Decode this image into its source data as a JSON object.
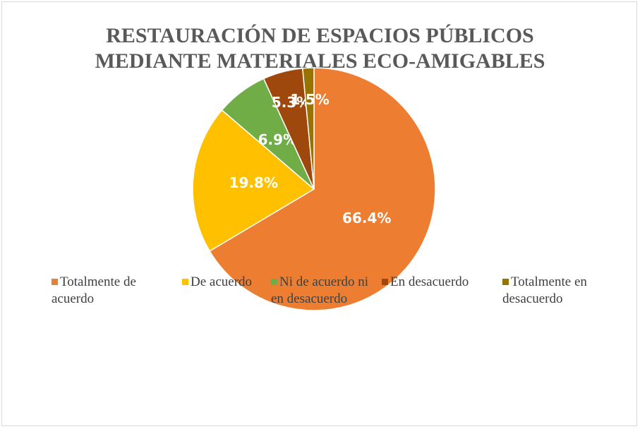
{
  "chart_data": {
    "type": "pie",
    "title": "RESTAURACIÓN DE ESPACIOS PÚBLICOS MEDIANTE  MATERIALES ECO-AMIGABLES",
    "categories": [
      "Totalmente de acuerdo",
      "De acuerdo",
      "Ni de acuerdo ni en desacuerdo",
      "En desacuerdo",
      "Totalmente en desacuerdo"
    ],
    "values": [
      66.4,
      19.8,
      6.9,
      5.3,
      1.5
    ],
    "value_labels": [
      "66.4%",
      "19.8%",
      "6.9%",
      "5.3%",
      "1.5%"
    ],
    "colors": [
      "#ED7D31",
      "#FFC000",
      "#70AD47",
      "#9E480E",
      "#997300"
    ],
    "legend": "bottom"
  }
}
